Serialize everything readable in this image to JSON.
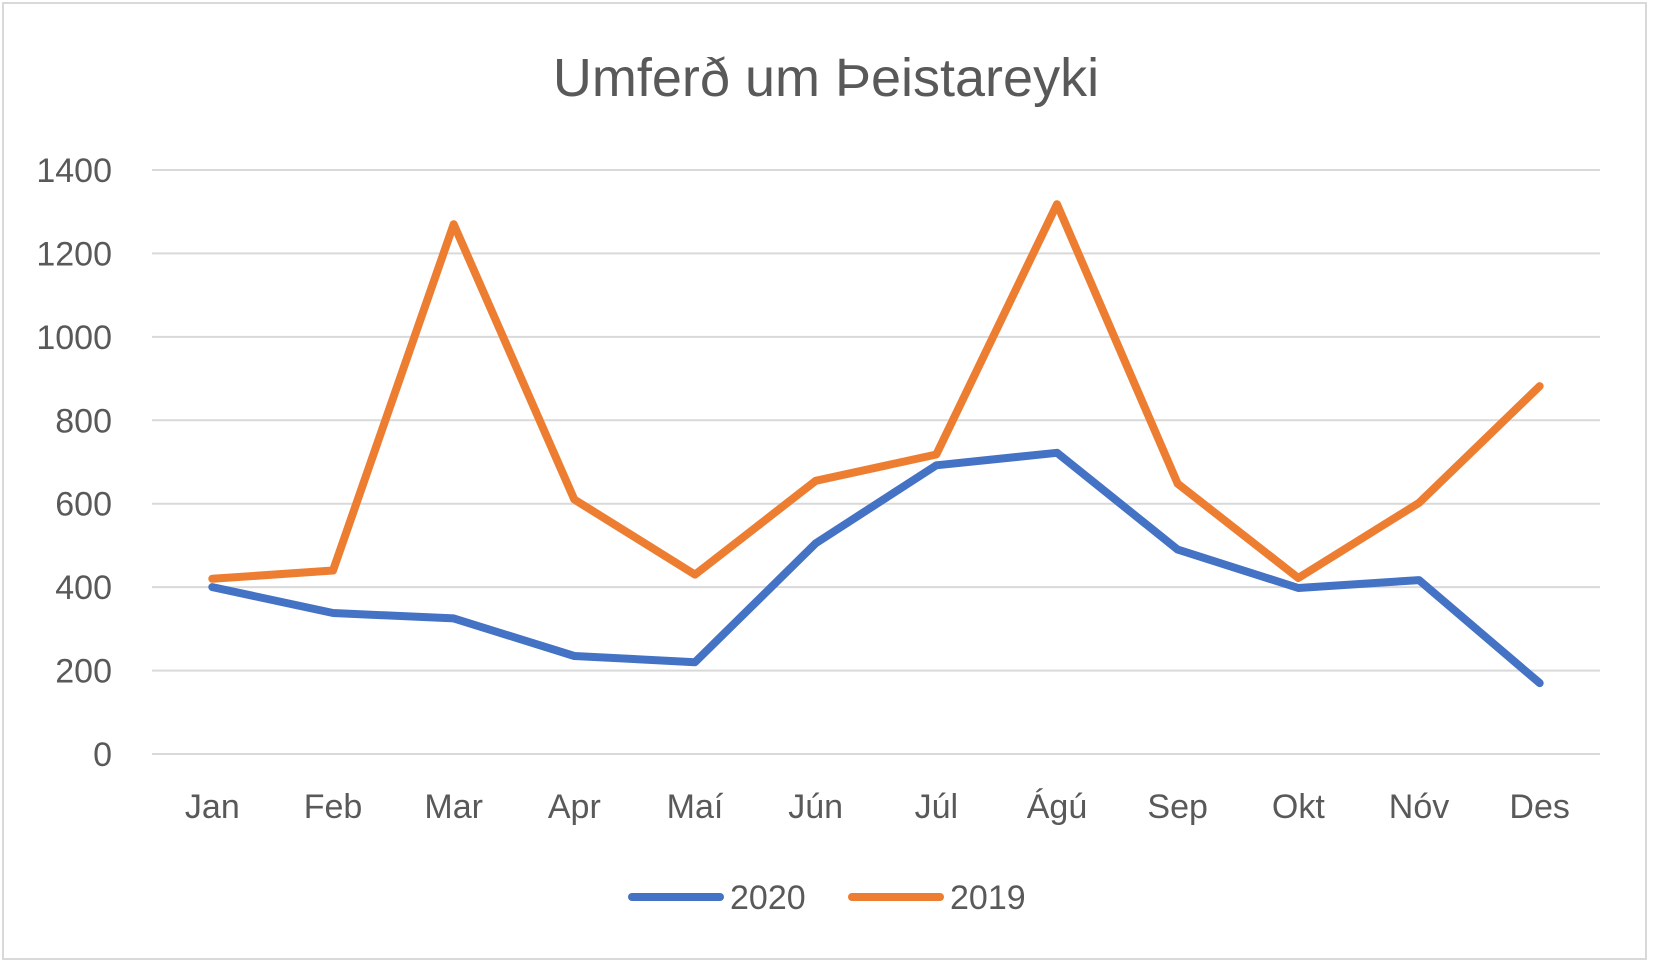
{
  "chart_data": {
    "type": "line",
    "title": "Umferð um Þeistareyki",
    "categories": [
      "Jan",
      "Feb",
      "Mar",
      "Apr",
      "Maí",
      "Jún",
      "Júl",
      "Ágú",
      "Sep",
      "Okt",
      "Nóv",
      "Des"
    ],
    "series": [
      {
        "name": "2020",
        "color": "#4472c4",
        "values": [
          400,
          338,
          325,
          235,
          220,
          505,
          692,
          722,
          490,
          398,
          417,
          170
        ]
      },
      {
        "name": "2019",
        "color": "#ed7d31",
        "values": [
          420,
          440,
          1270,
          610,
          430,
          655,
          718,
          1318,
          648,
          422,
          602,
          882
        ]
      }
    ],
    "ylim": [
      0,
      1400
    ],
    "yticks": [
      0,
      200,
      400,
      600,
      800,
      1000,
      1200,
      1400
    ],
    "grid": true,
    "legend": "bottom",
    "xlabel": "",
    "ylabel": ""
  }
}
